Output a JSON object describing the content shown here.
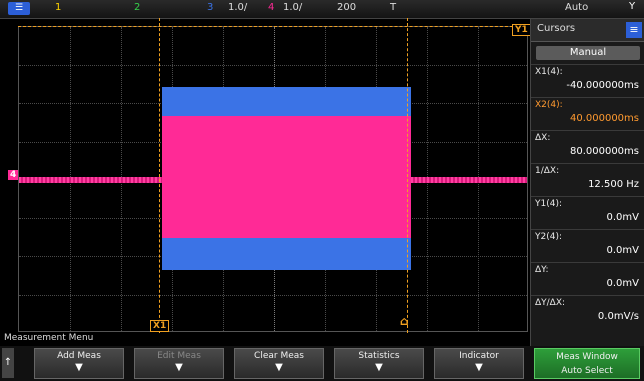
{
  "topbar": {
    "menu_label": "☰",
    "ch1": "1",
    "ch2": "2",
    "ch3": "3",
    "timebase": "1.0/",
    "trig_level": "1.0/",
    "sample": "200",
    "mode": "T",
    "acq": "Auto",
    "right": "Y"
  },
  "colors": {
    "ch1": "#ffd400",
    "ch2": "#35d04a",
    "ch3": "#3b73e6",
    "ch4": "#ff2a96",
    "cursor": "#f0a020"
  },
  "markers": {
    "x1": "X1",
    "y1": "Y1",
    "ch1": "4"
  },
  "panel": {
    "title": "Cursors",
    "main_button": "Manual",
    "measurements": [
      {
        "label": "X1(4):",
        "value": "-40.000000ms",
        "color": "#e8e8e8"
      },
      {
        "label": "X2(4):",
        "value": "40.000000ms",
        "color": "#ff9a30"
      },
      {
        "label": "ΔX:",
        "value": "80.000000ms",
        "color": "#e8e8e8"
      },
      {
        "label": "1/ΔX:",
        "value": "12.500 Hz",
        "color": "#e8e8e8"
      },
      {
        "label": "Y1(4):",
        "value": "0.0mV",
        "color": "#e8e8e8"
      },
      {
        "label": "Y2(4):",
        "value": "0.0mV",
        "color": "#e8e8e8"
      },
      {
        "label": "ΔY:",
        "value": "0.0mV",
        "color": "#e8e8e8"
      },
      {
        "label": "ΔY/ΔX:",
        "value": "0.0mV/s",
        "color": "#e8e8e8"
      }
    ]
  },
  "menu_title": "Measurement Menu",
  "softkeys": [
    {
      "label": "Add Meas",
      "arrow": "▼",
      "style": "normal"
    },
    {
      "label": "Edit Meas",
      "arrow": "▼",
      "style": "dim"
    },
    {
      "label": "Clear Meas",
      "arrow": "▼",
      "style": "normal"
    },
    {
      "label": "Statistics",
      "arrow": "▼",
      "style": "normal"
    },
    {
      "label": "Indicator",
      "arrow": "▼",
      "style": "normal"
    },
    {
      "label": "Meas Window",
      "label2": "Auto Select",
      "style": "green"
    }
  ],
  "home": "↑"
}
